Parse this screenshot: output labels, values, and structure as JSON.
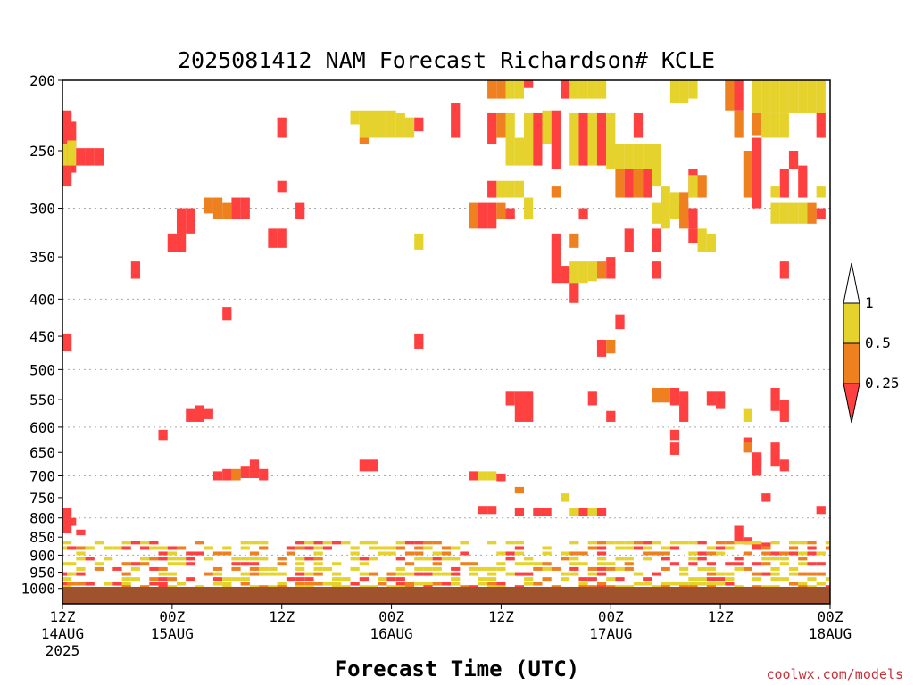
{
  "chart_data": {
    "type": "heatmap",
    "title": "2025081412 NAM Forecast Richardson# KCLE",
    "xlabel": "Forecast Time (UTC)",
    "credit": "coolwx.com/models",
    "x_range_hours": [
      0,
      84
    ],
    "x_ticks": [
      {
        "h": 0,
        "l1": "12Z",
        "l2": "14AUG",
        "l3": "2025"
      },
      {
        "h": 12,
        "l1": "00Z",
        "l2": "15AUG",
        "l3": ""
      },
      {
        "h": 24,
        "l1": "12Z",
        "l2": "",
        "l3": ""
      },
      {
        "h": 36,
        "l1": "00Z",
        "l2": "16AUG",
        "l3": ""
      },
      {
        "h": 48,
        "l1": "12Z",
        "l2": "",
        "l3": ""
      },
      {
        "h": 60,
        "l1": "00Z",
        "l2": "17AUG",
        "l3": ""
      },
      {
        "h": 72,
        "l1": "12Z",
        "l2": "",
        "l3": ""
      },
      {
        "h": 84,
        "l1": "00Z",
        "l2": "18AUG",
        "l3": ""
      }
    ],
    "y_axis": {
      "scale": "log",
      "range": [
        1050,
        200
      ],
      "reverse": true
    },
    "y_ticks": [
      200,
      250,
      300,
      350,
      400,
      450,
      500,
      550,
      600,
      650,
      700,
      750,
      800,
      850,
      900,
      950,
      1000
    ],
    "y_gridlines": [
      300,
      400,
      500,
      600,
      700,
      800,
      900,
      1000
    ],
    "ground_band_hPa": [
      1050,
      995
    ],
    "colors": {
      "ground": "#a0522d",
      "grid": "#aaaaaa"
    },
    "legend": {
      "placement": "right",
      "labels": [
        "1",
        "0.5",
        "0.25"
      ],
      "classes": [
        {
          "name": "0.5-1",
          "color": "#e6d22d"
        },
        {
          "name": "0.25-0.5",
          "color": "#ee8020"
        },
        {
          "name": "<0.25",
          "color": "#ff4040"
        }
      ]
    },
    "cells": [
      {
        "c": 1,
        "h": 0,
        "p0": 220,
        "p1": 280
      },
      {
        "c": 3,
        "h": 0,
        "p0": 245,
        "p1": 262
      },
      {
        "c": 1,
        "h": 1,
        "p0": 228,
        "p1": 268
      },
      {
        "c": 3,
        "h": 1,
        "p0": 242,
        "p1": 262
      },
      {
        "c": 1,
        "h": 2,
        "p0": 248,
        "p1": 262
      },
      {
        "c": 1,
        "h": 3,
        "p0": 248,
        "p1": 262
      },
      {
        "c": 1,
        "h": 4,
        "p0": 248,
        "p1": 262
      },
      {
        "c": 1,
        "h": 0,
        "p0": 446,
        "p1": 472
      },
      {
        "c": 1,
        "h": 24,
        "p0": 225,
        "p1": 240
      },
      {
        "c": 1,
        "h": 24,
        "p0": 275,
        "p1": 285
      },
      {
        "c": 1,
        "h": 8,
        "p0": 355,
        "p1": 375
      },
      {
        "c": 1,
        "h": 12,
        "p0": 325,
        "p1": 345
      },
      {
        "c": 1,
        "h": 13,
        "p0": 300,
        "p1": 345
      },
      {
        "c": 1,
        "h": 14,
        "p0": 300,
        "p1": 325
      },
      {
        "c": 2,
        "h": 16,
        "p0": 290,
        "p1": 305
      },
      {
        "c": 2,
        "h": 17,
        "p0": 290,
        "p1": 310
      },
      {
        "c": 2,
        "h": 18,
        "p0": 295,
        "p1": 310
      },
      {
        "c": 1,
        "h": 19,
        "p0": 290,
        "p1": 310
      },
      {
        "c": 1,
        "h": 20,
        "p0": 290,
        "p1": 310
      },
      {
        "c": 1,
        "h": 23,
        "p0": 320,
        "p1": 340
      },
      {
        "c": 1,
        "h": 24,
        "p0": 320,
        "p1": 340
      },
      {
        "c": 1,
        "h": 26,
        "p0": 295,
        "p1": 310
      },
      {
        "c": 1,
        "h": 18,
        "p0": 410,
        "p1": 428
      },
      {
        "c": 3,
        "h": 32,
        "p0": 220,
        "p1": 230
      },
      {
        "c": 3,
        "h": 33,
        "p0": 220,
        "p1": 240
      },
      {
        "c": 3,
        "h": 34,
        "p0": 220,
        "p1": 240
      },
      {
        "c": 3,
        "h": 35,
        "p0": 220,
        "p1": 240
      },
      {
        "c": 3,
        "h": 36,
        "p0": 220,
        "p1": 240
      },
      {
        "c": 3,
        "h": 37,
        "p0": 222,
        "p1": 240
      },
      {
        "c": 3,
        "h": 38,
        "p0": 225,
        "p1": 240
      },
      {
        "c": 2,
        "h": 33,
        "p0": 240,
        "p1": 245
      },
      {
        "c": 1,
        "h": 39,
        "p0": 225,
        "p1": 235
      },
      {
        "c": 3,
        "h": 39,
        "p0": 325,
        "p1": 342
      },
      {
        "c": 1,
        "h": 39,
        "p0": 446,
        "p1": 468
      },
      {
        "c": 1,
        "h": 43,
        "p0": 215,
        "p1": 240
      },
      {
        "c": 2,
        "h": 47,
        "p0": 200,
        "p1": 212
      },
      {
        "c": 2,
        "h": 48,
        "p0": 200,
        "p1": 212
      },
      {
        "c": 3,
        "h": 49,
        "p0": 200,
        "p1": 212
      },
      {
        "c": 3,
        "h": 50,
        "p0": 200,
        "p1": 212
      },
      {
        "c": 1,
        "h": 51,
        "p0": 200,
        "p1": 205
      },
      {
        "c": 1,
        "h": 55,
        "p0": 200,
        "p1": 212
      },
      {
        "c": 3,
        "h": 56,
        "p0": 200,
        "p1": 212
      },
      {
        "c": 3,
        "h": 57,
        "p0": 200,
        "p1": 212
      },
      {
        "c": 3,
        "h": 58,
        "p0": 200,
        "p1": 212
      },
      {
        "c": 3,
        "h": 59,
        "p0": 200,
        "p1": 212
      },
      {
        "c": 3,
        "h": 67,
        "p0": 200,
        "p1": 215
      },
      {
        "c": 3,
        "h": 68,
        "p0": 200,
        "p1": 215
      },
      {
        "c": 3,
        "h": 69,
        "p0": 200,
        "p1": 212
      },
      {
        "c": 1,
        "h": 74,
        "p0": 200,
        "p1": 220
      },
      {
        "c": 2,
        "h": 74,
        "p0": 220,
        "p1": 240
      },
      {
        "c": 2,
        "h": 73,
        "p0": 200,
        "p1": 220
      },
      {
        "c": 3,
        "h": 76,
        "p0": 200,
        "p1": 222
      },
      {
        "c": 3,
        "h": 77,
        "p0": 200,
        "p1": 222
      },
      {
        "c": 3,
        "h": 78,
        "p0": 200,
        "p1": 222
      },
      {
        "c": 3,
        "h": 79,
        "p0": 200,
        "p1": 222
      },
      {
        "c": 3,
        "h": 80,
        "p0": 200,
        "p1": 222
      },
      {
        "c": 3,
        "h": 81,
        "p0": 200,
        "p1": 222
      },
      {
        "c": 3,
        "h": 82,
        "p0": 200,
        "p1": 222
      },
      {
        "c": 3,
        "h": 83,
        "p0": 200,
        "p1": 222
      },
      {
        "c": 2,
        "h": 76,
        "p0": 222,
        "p1": 238
      },
      {
        "c": 3,
        "h": 77,
        "p0": 222,
        "p1": 240
      },
      {
        "c": 3,
        "h": 78,
        "p0": 222,
        "p1": 240
      },
      {
        "c": 3,
        "h": 79,
        "p0": 222,
        "p1": 240
      },
      {
        "c": 1,
        "h": 83,
        "p0": 222,
        "p1": 240
      },
      {
        "c": 1,
        "h": 47,
        "p0": 222,
        "p1": 245
      },
      {
        "c": 2,
        "h": 48,
        "p0": 222,
        "p1": 240
      },
      {
        "c": 3,
        "h": 49,
        "p0": 222,
        "p1": 262
      },
      {
        "c": 3,
        "h": 50,
        "p0": 240,
        "p1": 262
      },
      {
        "c": 3,
        "h": 51,
        "p0": 222,
        "p1": 262
      },
      {
        "c": 1,
        "h": 52,
        "p0": 222,
        "p1": 262
      },
      {
        "c": 3,
        "h": 53,
        "p0": 220,
        "p1": 245
      },
      {
        "c": 1,
        "h": 54,
        "p0": 220,
        "p1": 265
      },
      {
        "c": 3,
        "h": 56,
        "p0": 222,
        "p1": 262
      },
      {
        "c": 1,
        "h": 57,
        "p0": 222,
        "p1": 262
      },
      {
        "c": 3,
        "h": 58,
        "p0": 222,
        "p1": 262
      },
      {
        "c": 1,
        "h": 59,
        "p0": 222,
        "p1": 262
      },
      {
        "c": 3,
        "h": 60,
        "p0": 222,
        "p1": 262
      },
      {
        "c": 1,
        "h": 63,
        "p0": 222,
        "p1": 240
      },
      {
        "c": 3,
        "h": 60,
        "p0": 245,
        "p1": 265
      },
      {
        "c": 3,
        "h": 61,
        "p0": 245,
        "p1": 265
      },
      {
        "c": 3,
        "h": 62,
        "p0": 245,
        "p1": 265
      },
      {
        "c": 3,
        "h": 63,
        "p0": 245,
        "p1": 265
      },
      {
        "c": 3,
        "h": 64,
        "p0": 245,
        "p1": 265
      },
      {
        "c": 3,
        "h": 65,
        "p0": 245,
        "p1": 265
      },
      {
        "c": 2,
        "h": 61,
        "p0": 265,
        "p1": 290
      },
      {
        "c": 1,
        "h": 62,
        "p0": 265,
        "p1": 290
      },
      {
        "c": 2,
        "h": 63,
        "p0": 265,
        "p1": 290
      },
      {
        "c": 1,
        "h": 64,
        "p0": 265,
        "p1": 290
      },
      {
        "c": 3,
        "h": 65,
        "p0": 265,
        "p1": 280
      },
      {
        "c": 3,
        "h": 66,
        "p0": 280,
        "p1": 305
      },
      {
        "c": 3,
        "h": 67,
        "p0": 285,
        "p1": 310
      },
      {
        "c": 2,
        "h": 68,
        "p0": 285,
        "p1": 310
      },
      {
        "c": 1,
        "h": 69,
        "p0": 265,
        "p1": 290
      },
      {
        "c": 3,
        "h": 69,
        "p0": 270,
        "p1": 290
      },
      {
        "c": 2,
        "h": 70,
        "p0": 270,
        "p1": 290
      },
      {
        "c": 2,
        "h": 75,
        "p0": 250,
        "p1": 290
      },
      {
        "c": 1,
        "h": 76,
        "p0": 240,
        "p1": 300
      },
      {
        "c": 1,
        "h": 79,
        "p0": 265,
        "p1": 290
      },
      {
        "c": 3,
        "h": 78,
        "p0": 280,
        "p1": 290
      },
      {
        "c": 1,
        "h": 80,
        "p0": 250,
        "p1": 265
      },
      {
        "c": 1,
        "h": 81,
        "p0": 262,
        "p1": 290
      },
      {
        "c": 3,
        "h": 83,
        "p0": 280,
        "p1": 290
      },
      {
        "c": 3,
        "h": 48,
        "p0": 275,
        "p1": 290
      },
      {
        "c": 3,
        "h": 49,
        "p0": 275,
        "p1": 290
      },
      {
        "c": 3,
        "h": 50,
        "p0": 275,
        "p1": 290
      },
      {
        "c": 1,
        "h": 47,
        "p0": 275,
        "p1": 290
      },
      {
        "c": 1,
        "h": 46,
        "p0": 295,
        "p1": 320
      },
      {
        "c": 2,
        "h": 45,
        "p0": 295,
        "p1": 320
      },
      {
        "c": 1,
        "h": 47,
        "p0": 295,
        "p1": 320
      },
      {
        "c": 2,
        "h": 48,
        "p0": 295,
        "p1": 310
      },
      {
        "c": 1,
        "h": 49,
        "p0": 300,
        "p1": 310
      },
      {
        "c": 3,
        "h": 51,
        "p0": 290,
        "p1": 310
      },
      {
        "c": 2,
        "h": 54,
        "p0": 280,
        "p1": 290
      },
      {
        "c": 1,
        "h": 57,
        "p0": 300,
        "p1": 310
      },
      {
        "c": 3,
        "h": 65,
        "p0": 295,
        "p1": 315
      },
      {
        "c": 3,
        "h": 66,
        "p0": 300,
        "p1": 320
      },
      {
        "c": 2,
        "h": 68,
        "p0": 295,
        "p1": 320
      },
      {
        "c": 1,
        "h": 69,
        "p0": 300,
        "p1": 320
      },
      {
        "c": 3,
        "h": 78,
        "p0": 295,
        "p1": 315
      },
      {
        "c": 3,
        "h": 79,
        "p0": 295,
        "p1": 315
      },
      {
        "c": 3,
        "h": 80,
        "p0": 295,
        "p1": 315
      },
      {
        "c": 3,
        "h": 81,
        "p0": 295,
        "p1": 315
      },
      {
        "c": 2,
        "h": 82,
        "p0": 295,
        "p1": 315
      },
      {
        "c": 1,
        "h": 83,
        "p0": 300,
        "p1": 310
      },
      {
        "c": 3,
        "h": 70,
        "p0": 320,
        "p1": 345
      },
      {
        "c": 3,
        "h": 71,
        "p0": 325,
        "p1": 345
      },
      {
        "c": 1,
        "h": 69,
        "p0": 320,
        "p1": 335
      },
      {
        "c": 1,
        "h": 65,
        "p0": 320,
        "p1": 345
      },
      {
        "c": 1,
        "h": 62,
        "p0": 320,
        "p1": 345
      },
      {
        "c": 2,
        "h": 56,
        "p0": 325,
        "p1": 340
      },
      {
        "c": 1,
        "h": 54,
        "p0": 325,
        "p1": 380
      },
      {
        "c": 1,
        "h": 55,
        "p0": 360,
        "p1": 380
      },
      {
        "c": 3,
        "h": 56,
        "p0": 355,
        "p1": 380
      },
      {
        "c": 3,
        "h": 57,
        "p0": 355,
        "p1": 380
      },
      {
        "c": 3,
        "h": 58,
        "p0": 355,
        "p1": 378
      },
      {
        "c": 2,
        "h": 59,
        "p0": 355,
        "p1": 375
      },
      {
        "c": 1,
        "h": 60,
        "p0": 350,
        "p1": 375
      },
      {
        "c": 1,
        "h": 56,
        "p0": 380,
        "p1": 405
      },
      {
        "c": 1,
        "h": 65,
        "p0": 355,
        "p1": 375
      },
      {
        "c": 1,
        "h": 79,
        "p0": 355,
        "p1": 375
      },
      {
        "c": 1,
        "h": 61,
        "p0": 420,
        "p1": 440
      },
      {
        "c": 1,
        "h": 59,
        "p0": 455,
        "p1": 480
      },
      {
        "c": 2,
        "h": 60,
        "p0": 455,
        "p1": 475
      },
      {
        "c": 1,
        "h": 49,
        "p0": 535,
        "p1": 560
      },
      {
        "c": 1,
        "h": 50,
        "p0": 535,
        "p1": 590
      },
      {
        "c": 1,
        "h": 51,
        "p0": 535,
        "p1": 590
      },
      {
        "c": 1,
        "h": 58,
        "p0": 535,
        "p1": 560
      },
      {
        "c": 1,
        "h": 60,
        "p0": 570,
        "p1": 590
      },
      {
        "c": 2,
        "h": 65,
        "p0": 530,
        "p1": 555
      },
      {
        "c": 2,
        "h": 66,
        "p0": 530,
        "p1": 555
      },
      {
        "c": 1,
        "h": 67,
        "p0": 530,
        "p1": 560
      },
      {
        "c": 1,
        "h": 68,
        "p0": 535,
        "p1": 590
      },
      {
        "c": 1,
        "h": 71,
        "p0": 535,
        "p1": 560
      },
      {
        "c": 1,
        "h": 72,
        "p0": 535,
        "p1": 565
      },
      {
        "c": 3,
        "h": 75,
        "p0": 565,
        "p1": 590
      },
      {
        "c": 1,
        "h": 78,
        "p0": 530,
        "p1": 570
      },
      {
        "c": 1,
        "h": 79,
        "p0": 550,
        "p1": 590
      },
      {
        "c": 1,
        "h": 67,
        "p0": 605,
        "p1": 625
      },
      {
        "c": 1,
        "h": 67,
        "p0": 630,
        "p1": 655
      },
      {
        "c": 1,
        "h": 75,
        "p0": 620,
        "p1": 650
      },
      {
        "c": 2,
        "h": 75,
        "p0": 630,
        "p1": 650
      },
      {
        "c": 2,
        "h": 76,
        "p0": 655,
        "p1": 680
      },
      {
        "c": 1,
        "h": 76,
        "p0": 650,
        "p1": 700
      },
      {
        "c": 1,
        "h": 78,
        "p0": 630,
        "p1": 680
      },
      {
        "c": 1,
        "h": 79,
        "p0": 665,
        "p1": 690
      },
      {
        "c": 1,
        "h": 14,
        "p0": 565,
        "p1": 590
      },
      {
        "c": 1,
        "h": 15,
        "p0": 560,
        "p1": 590
      },
      {
        "c": 1,
        "h": 16,
        "p0": 565,
        "p1": 585
      },
      {
        "c": 1,
        "h": 11,
        "p0": 605,
        "p1": 625
      },
      {
        "c": 1,
        "h": 17,
        "p0": 690,
        "p1": 710
      },
      {
        "c": 1,
        "h": 18,
        "p0": 685,
        "p1": 710
      },
      {
        "c": 2,
        "h": 19,
        "p0": 685,
        "p1": 710
      },
      {
        "c": 1,
        "h": 20,
        "p0": 680,
        "p1": 705
      },
      {
        "c": 1,
        "h": 21,
        "p0": 665,
        "p1": 705
      },
      {
        "c": 1,
        "h": 22,
        "p0": 685,
        "p1": 710
      },
      {
        "c": 1,
        "h": 33,
        "p0": 665,
        "p1": 690
      },
      {
        "c": 1,
        "h": 34,
        "p0": 665,
        "p1": 690
      },
      {
        "c": 1,
        "h": 45,
        "p0": 690,
        "p1": 710
      },
      {
        "c": 3,
        "h": 46,
        "p0": 690,
        "p1": 710
      },
      {
        "c": 3,
        "h": 47,
        "p0": 690,
        "p1": 710
      },
      {
        "c": 1,
        "h": 48,
        "p0": 695,
        "p1": 712
      },
      {
        "c": 2,
        "h": 50,
        "p0": 725,
        "p1": 740
      },
      {
        "c": 3,
        "h": 55,
        "p0": 740,
        "p1": 760
      },
      {
        "c": 1,
        "h": 77,
        "p0": 740,
        "p1": 760
      },
      {
        "c": 1,
        "h": 83,
        "p0": 770,
        "p1": 790
      },
      {
        "c": 1,
        "h": 0,
        "p0": 775,
        "p1": 840
      },
      {
        "c": 1,
        "h": 1,
        "p0": 800,
        "p1": 820
      },
      {
        "c": 1,
        "h": 2,
        "p0": 830,
        "p1": 845
      },
      {
        "c": 1,
        "h": 46,
        "p0": 770,
        "p1": 790
      },
      {
        "c": 1,
        "h": 47,
        "p0": 770,
        "p1": 790
      },
      {
        "c": 1,
        "h": 50,
        "p0": 775,
        "p1": 795
      },
      {
        "c": 1,
        "h": 52,
        "p0": 775,
        "p1": 795
      },
      {
        "c": 1,
        "h": 53,
        "p0": 775,
        "p1": 795
      },
      {
        "c": 3,
        "h": 56,
        "p0": 775,
        "p1": 795
      },
      {
        "c": 1,
        "h": 57,
        "p0": 775,
        "p1": 795
      },
      {
        "c": 3,
        "h": 58,
        "p0": 775,
        "p1": 795
      },
      {
        "c": 1,
        "h": 59,
        "p0": 775,
        "p1": 795
      },
      {
        "c": 1,
        "h": 74,
        "p0": 820,
        "p1": 860
      },
      {
        "c": 1,
        "h": 75,
        "p0": 850,
        "p1": 870
      },
      {
        "c": 1,
        "h": 76,
        "p0": 860,
        "p1": 885
      },
      {
        "c": 1,
        "h": 77,
        "p0": 865,
        "p1": 880
      }
    ]
  }
}
